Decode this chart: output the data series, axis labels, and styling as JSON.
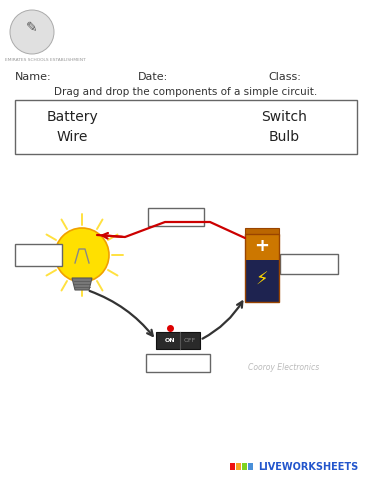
{
  "bg_color": "#ffffff",
  "header_text1": "Name:",
  "header_text2": "Date:",
  "header_text3": "Class:",
  "instruction": "Drag and drop the components of a simple circuit.",
  "box_items_left": [
    "Battery",
    "Wire"
  ],
  "box_items_right": [
    "Switch",
    "Bulb"
  ],
  "watermark": "Cooroy Electronics",
  "liveworksheets": "LIVEWORKSHEETS",
  "logo_text": "EMIRATES SCHOOLS ESTABLISHMENT",
  "fig_w": 3.72,
  "fig_h": 4.8,
  "dpi": 100
}
